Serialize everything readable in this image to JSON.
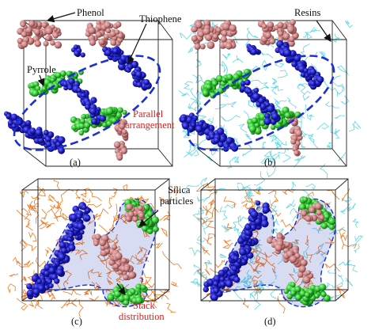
{
  "panels": [
    {
      "id": "a",
      "caption": "(a)",
      "labels": {
        "phenol": "Phenol",
        "thiophene": "Thiophene",
        "pyrrole": "Pyrrole",
        "parallel_1": "Parallel",
        "parallel_2": "arrangement"
      }
    },
    {
      "id": "b",
      "caption": "(b)",
      "labels": {
        "resins": "Resins"
      }
    },
    {
      "id": "c",
      "caption": "(c)",
      "labels": {
        "silica_1": "Silica",
        "silica_2": "particles",
        "stack_1": "Stack",
        "stack_2": "distribution"
      }
    },
    {
      "id": "d",
      "caption": "(d)",
      "labels": {}
    }
  ],
  "colors": {
    "phenol": "#c98080",
    "thiophene": "#1a1ab8",
    "pyrrole": "#2fbf2f",
    "resins": "#5fd6e6",
    "silica": "#f07820",
    "red_label": "#d62020",
    "dashed_outline": "#1c2fd0",
    "box_edges": "#222222"
  },
  "icons": [
    "pointer-arrow-icon"
  ]
}
